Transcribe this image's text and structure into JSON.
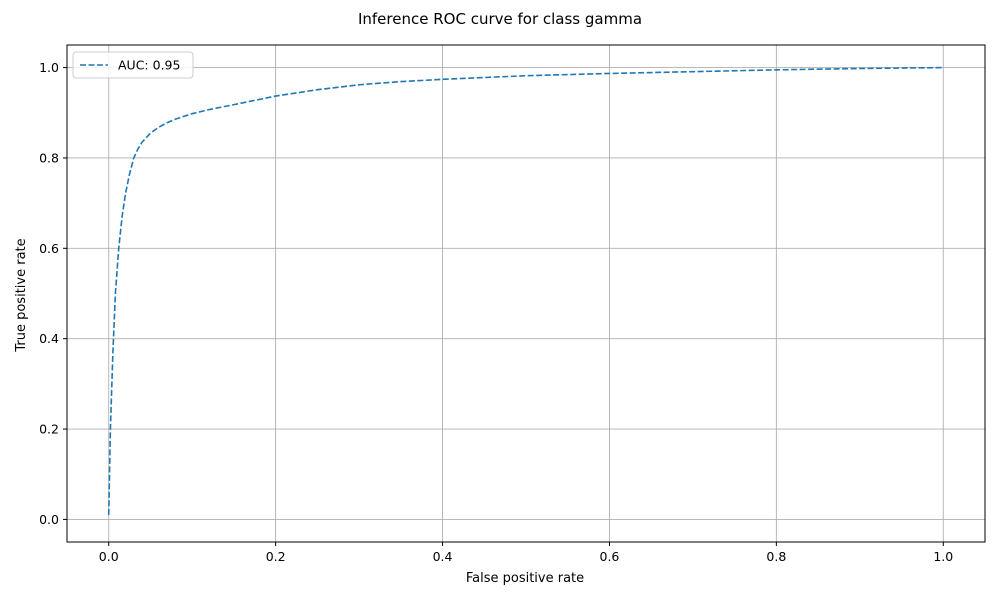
{
  "chart_data": {
    "type": "line",
    "title": "Inference ROC curve for class gamma",
    "xlabel": "False positive rate",
    "ylabel": "True positive rate",
    "xlim": [
      -0.05,
      1.05
    ],
    "ylim": [
      -0.05,
      1.05
    ],
    "xticks": [
      0.0,
      0.2,
      0.4,
      0.6,
      0.8,
      1.0
    ],
    "yticks": [
      0.0,
      0.2,
      0.4,
      0.6,
      0.8,
      1.0
    ],
    "xtick_labels": [
      "0.0",
      "0.2",
      "0.4",
      "0.6",
      "0.8",
      "1.0"
    ],
    "ytick_labels": [
      "0.0",
      "0.2",
      "0.4",
      "0.6",
      "0.8",
      "1.0"
    ],
    "grid": true,
    "legend_position": "top-left",
    "series": [
      {
        "name": "AUC: 0.95",
        "color": "#1f77b4",
        "line_style": "dashed",
        "x": [
          0.0,
          0.002,
          0.005,
          0.008,
          0.012,
          0.016,
          0.02,
          0.025,
          0.03,
          0.035,
          0.04,
          0.05,
          0.06,
          0.07,
          0.08,
          0.1,
          0.12,
          0.15,
          0.2,
          0.25,
          0.3,
          0.35,
          0.4,
          0.5,
          0.6,
          0.7,
          0.8,
          0.9,
          1.0
        ],
        "y": [
          0.01,
          0.2,
          0.37,
          0.5,
          0.6,
          0.67,
          0.72,
          0.765,
          0.8,
          0.82,
          0.835,
          0.855,
          0.868,
          0.878,
          0.886,
          0.898,
          0.907,
          0.918,
          0.937,
          0.951,
          0.962,
          0.969,
          0.974,
          0.982,
          0.987,
          0.991,
          0.995,
          0.998,
          1.0
        ]
      }
    ]
  }
}
